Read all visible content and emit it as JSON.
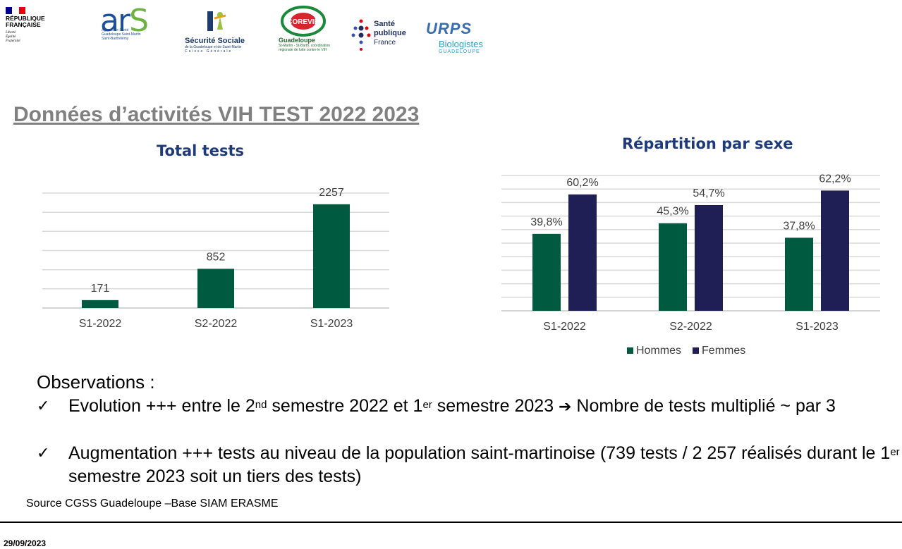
{
  "logos": {
    "republique": {
      "name": "RÉPUBLIQUE FRANÇAISE",
      "motto": [
        "Liberté",
        "Égalité",
        "Fraternité"
      ]
    },
    "ars": {
      "word": "ar",
      "word_s": "S",
      "sub": "Agence de Santé Guadeloupe Saint-Martin Saint-Barthélemy"
    },
    "securite_sociale": {
      "name": "Sécurité Sociale",
      "sub": "de la Guadeloupe et de Saint-Martin",
      "sub2": "Caisse Générale"
    },
    "corevih": {
      "mark": "COREVIH",
      "name": "Guadeloupe",
      "sub": "St-Martin - St-Barth. coordination régionale de lutte contre le VIH"
    },
    "sante_publique": {
      "line1": "Santé",
      "line2": "publique",
      "line3": "France"
    },
    "urps": {
      "mark": "URPS",
      "name": "Biologistes",
      "region": "GUADELOUPE"
    },
    "colors": {
      "ars_blue": "#1e4f9c",
      "ars_green": "#6cb33f",
      "flag_blue": "#000091",
      "flag_red": "#e1000f"
    }
  },
  "page": {
    "title": "Données d’activités VIH TEST 2022 2023"
  },
  "chart_data": [
    {
      "type": "bar",
      "title": "Total tests",
      "categories": [
        "S1-2022",
        "S2-2022",
        "S1-2023"
      ],
      "values": [
        171,
        852,
        2257
      ],
      "data_labels": [
        "171",
        "852",
        "2257"
      ],
      "ylim": [
        0,
        2500
      ],
      "gridlines": [
        0,
        417,
        833,
        1250,
        1667,
        2083,
        2500
      ],
      "grid": true,
      "legend": false,
      "colors": {
        "bar": "#005a40",
        "grid": "#d9d9d9",
        "axis": "#c6c6c6",
        "title": "#1f3a7a",
        "text": "#404040"
      }
    },
    {
      "type": "bar",
      "title": "Répartition par sexe",
      "categories": [
        "S1-2022",
        "S2-2022",
        "S1-2023"
      ],
      "series": [
        {
          "name": "Hommes",
          "values": [
            39.8,
            45.3,
            37.8
          ],
          "labels": [
            "39,8%",
            "45,3%",
            "37,8%"
          ],
          "color": "#005a40"
        },
        {
          "name": "Femmes",
          "values": [
            60.2,
            54.7,
            62.2
          ],
          "labels": [
            "60,2%",
            "54,7%",
            "62,2%"
          ],
          "color": "#1f1f55"
        }
      ],
      "ylim": [
        0,
        70
      ],
      "gridlines": [
        0,
        7,
        14,
        21,
        28,
        35,
        42,
        49,
        56,
        63,
        70
      ],
      "grid": true,
      "legend": "bottom",
      "colors": {
        "grid": "#d9d9d9",
        "axis": "#c6c6c6",
        "title": "#1f3a7a",
        "text": "#404040"
      }
    }
  ],
  "observations": {
    "heading": "Observations :",
    "check": "✓",
    "items": [
      {
        "part1": "Evolution +++ entre le 2",
        "sup1": "nd",
        "part2": " semestre 2022 et 1",
        "sup2": "er",
        "part3": " semestre 2023 ",
        "arrow": "➔",
        "part4": " Nombre de tests multiplié ~ par 3"
      },
      {
        "part1": "Augmentation +++ tests  au niveau de la population saint-martinoise (739 tests / 2 257 réalisés durant le 1",
        "sup1": "er",
        "part2": " semestre 2023 soit un tiers des tests)"
      }
    ]
  },
  "source": "Source CGSS Guadeloupe –Base SIAM ERASME",
  "footer": {
    "date": "29/09/2023"
  }
}
